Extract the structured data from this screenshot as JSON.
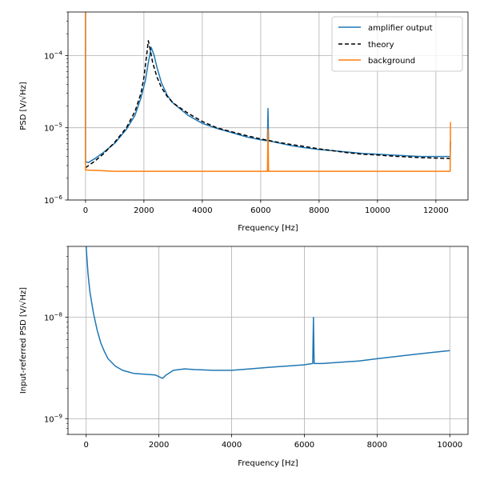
{
  "colors": {
    "blue": "#1f77b4",
    "orange": "#ff7f0e",
    "black": "#000000",
    "grid": "#b0b0b0"
  },
  "chart_data": [
    {
      "type": "line",
      "title": "",
      "xlabel": "Frequency [Hz]",
      "ylabel": "PSD [V/√Hz]",
      "xlim": [
        -600,
        13100
      ],
      "ylim": [
        1e-06,
        0.0004
      ],
      "yscale": "log",
      "grid": true,
      "legend": "top-right",
      "x_ticks": [
        {
          "value": 0,
          "label": "0"
        },
        {
          "value": 2000,
          "label": "2000"
        },
        {
          "value": 4000,
          "label": "4000"
        },
        {
          "value": 6000,
          "label": "6000"
        },
        {
          "value": 8000,
          "label": "8000"
        },
        {
          "value": 10000,
          "label": "10000"
        },
        {
          "value": 12000,
          "label": "12000"
        }
      ],
      "y_ticks": [
        {
          "value": 1e-06,
          "base": "10",
          "exp": "−6"
        },
        {
          "value": 1e-05,
          "base": "10",
          "exp": "−5"
        },
        {
          "value": 0.0001,
          "base": "10",
          "exp": "−4"
        }
      ],
      "series": [
        {
          "name": "amplifier output",
          "color": "#1f77b4",
          "style": "solid",
          "points": [
            [
              0,
              0.0004
            ],
            [
              0,
              3.4e-06
            ],
            [
              100,
              3.3e-06
            ],
            [
              300,
              3.7e-06
            ],
            [
              600,
              4.5e-06
            ],
            [
              1000,
              6.1e-06
            ],
            [
              1400,
              9.5e-06
            ],
            [
              1700,
              1.5e-05
            ],
            [
              1900,
              2.6e-05
            ],
            [
              2050,
              4.5e-05
            ],
            [
              2150,
              8e-05
            ],
            [
              2250,
              0.00013
            ],
            [
              2350,
              0.0001
            ],
            [
              2450,
              6.8e-05
            ],
            [
              2600,
              4.2e-05
            ],
            [
              2800,
              2.8e-05
            ],
            [
              3000,
              2.2e-05
            ],
            [
              3500,
              1.5e-05
            ],
            [
              4000,
              1.15e-05
            ],
            [
              4500,
              9.8e-06
            ],
            [
              5000,
              8.6e-06
            ],
            [
              5500,
              7.5e-06
            ],
            [
              6000,
              6.8e-06
            ],
            [
              6230,
              6.6e-06
            ],
            [
              6250,
              1.85e-05
            ],
            [
              6270,
              6.6e-06
            ],
            [
              6500,
              6.3e-06
            ],
            [
              7000,
              5.7e-06
            ],
            [
              7500,
              5.3e-06
            ],
            [
              8000,
              5e-06
            ],
            [
              8500,
              4.8e-06
            ],
            [
              9000,
              4.6e-06
            ],
            [
              9500,
              4.4e-06
            ],
            [
              10000,
              4.3e-06
            ],
            [
              10500,
              4.2e-06
            ],
            [
              11000,
              4.1e-06
            ],
            [
              11500,
              4e-06
            ],
            [
              12000,
              4e-06
            ],
            [
              12490,
              4e-06
            ],
            [
              12500,
              6.5e-06
            ]
          ]
        },
        {
          "name": "theory",
          "color": "#000000",
          "style": "dashed",
          "points": [
            [
              0,
              2.8e-06
            ],
            [
              300,
              3.4e-06
            ],
            [
              600,
              4.3e-06
            ],
            [
              1000,
              6.3e-06
            ],
            [
              1400,
              1e-05
            ],
            [
              1700,
              1.7e-05
            ],
            [
              1900,
              3e-05
            ],
            [
              2000,
              5e-05
            ],
            [
              2100,
              0.000105
            ],
            [
              2150,
              0.00016
            ],
            [
              2200,
              0.00013
            ],
            [
              2300,
              8e-05
            ],
            [
              2450,
              5e-05
            ],
            [
              2600,
              3.6e-05
            ],
            [
              2800,
              2.7e-05
            ],
            [
              3000,
              2.2e-05
            ],
            [
              3500,
              1.6e-05
            ],
            [
              4000,
              1.22e-05
            ],
            [
              4500,
              1e-05
            ],
            [
              5000,
              8.8e-06
            ],
            [
              5500,
              7.8e-06
            ],
            [
              6000,
              7e-06
            ],
            [
              6500,
              6.4e-06
            ],
            [
              7000,
              5.9e-06
            ],
            [
              7500,
              5.5e-06
            ],
            [
              8000,
              5.1e-06
            ],
            [
              8500,
              4.8e-06
            ],
            [
              9000,
              4.5e-06
            ],
            [
              9500,
              4.3e-06
            ],
            [
              10000,
              4.2e-06
            ],
            [
              10500,
              4.05e-06
            ],
            [
              11000,
              3.95e-06
            ],
            [
              11500,
              3.85e-06
            ],
            [
              12000,
              3.8e-06
            ],
            [
              12500,
              3.75e-06
            ]
          ]
        },
        {
          "name": "background",
          "color": "#ff7f0e",
          "style": "solid",
          "points": [
            [
              0,
              0.0004
            ],
            [
              0,
              2.6e-06
            ],
            [
              1000,
              2.5e-06
            ],
            [
              2000,
              2.5e-06
            ],
            [
              3000,
              2.5e-06
            ],
            [
              4000,
              2.5e-06
            ],
            [
              5000,
              2.5e-06
            ],
            [
              6000,
              2.5e-06
            ],
            [
              6230,
              2.5e-06
            ],
            [
              6250,
              9.5e-06
            ],
            [
              6270,
              2.5e-06
            ],
            [
              7000,
              2.5e-06
            ],
            [
              8000,
              2.5e-06
            ],
            [
              9000,
              2.5e-06
            ],
            [
              10000,
              2.5e-06
            ],
            [
              11000,
              2.5e-06
            ],
            [
              12000,
              2.5e-06
            ],
            [
              12490,
              2.5e-06
            ],
            [
              12500,
              1.2e-05
            ]
          ]
        }
      ]
    },
    {
      "type": "line",
      "title": "",
      "xlabel": "Frequency [Hz]",
      "ylabel": "Input-referred PSD [V/√Hz]",
      "xlim": [
        -500,
        10500
      ],
      "ylim": [
        7e-10,
        5e-08
      ],
      "yscale": "log",
      "grid": true,
      "x_ticks": [
        {
          "value": 0,
          "label": "0"
        },
        {
          "value": 2000,
          "label": "2000"
        },
        {
          "value": 4000,
          "label": "4000"
        },
        {
          "value": 6000,
          "label": "6000"
        },
        {
          "value": 8000,
          "label": "8000"
        },
        {
          "value": 10000,
          "label": "10000"
        }
      ],
      "y_ticks": [
        {
          "value": 1e-09,
          "base": "10",
          "exp": "−9"
        },
        {
          "value": 1e-08,
          "base": "10",
          "exp": "−8"
        }
      ],
      "series": [
        {
          "name": "",
          "color": "#1f77b4",
          "style": "solid",
          "points": [
            [
              0,
              5e-08
            ],
            [
              50,
              2.7e-08
            ],
            [
              100,
              1.8e-08
            ],
            [
              200,
              1.1e-08
            ],
            [
              300,
              7.5e-09
            ],
            [
              400,
              5.6e-09
            ],
            [
              500,
              4.6e-09
            ],
            [
              600,
              3.9e-09
            ],
            [
              800,
              3.3e-09
            ],
            [
              1000,
              3e-09
            ],
            [
              1300,
              2.8e-09
            ],
            [
              1600,
              2.75e-09
            ],
            [
              1900,
              2.7e-09
            ],
            [
              2100,
              2.5e-09
            ],
            [
              2200,
              2.7e-09
            ],
            [
              2400,
              3e-09
            ],
            [
              2700,
              3.1e-09
            ],
            [
              3000,
              3.05e-09
            ],
            [
              3500,
              3e-09
            ],
            [
              4000,
              3e-09
            ],
            [
              4500,
              3.1e-09
            ],
            [
              5000,
              3.2e-09
            ],
            [
              5500,
              3.3e-09
            ],
            [
              6000,
              3.4e-09
            ],
            [
              6230,
              3.5e-09
            ],
            [
              6250,
              1e-08
            ],
            [
              6270,
              3.5e-09
            ],
            [
              6500,
              3.5e-09
            ],
            [
              7000,
              3.6e-09
            ],
            [
              7500,
              3.7e-09
            ],
            [
              8000,
              3.9e-09
            ],
            [
              8500,
              4.1e-09
            ],
            [
              9000,
              4.3e-09
            ],
            [
              9500,
              4.5e-09
            ],
            [
              10000,
              4.7e-09
            ]
          ]
        }
      ]
    }
  ]
}
